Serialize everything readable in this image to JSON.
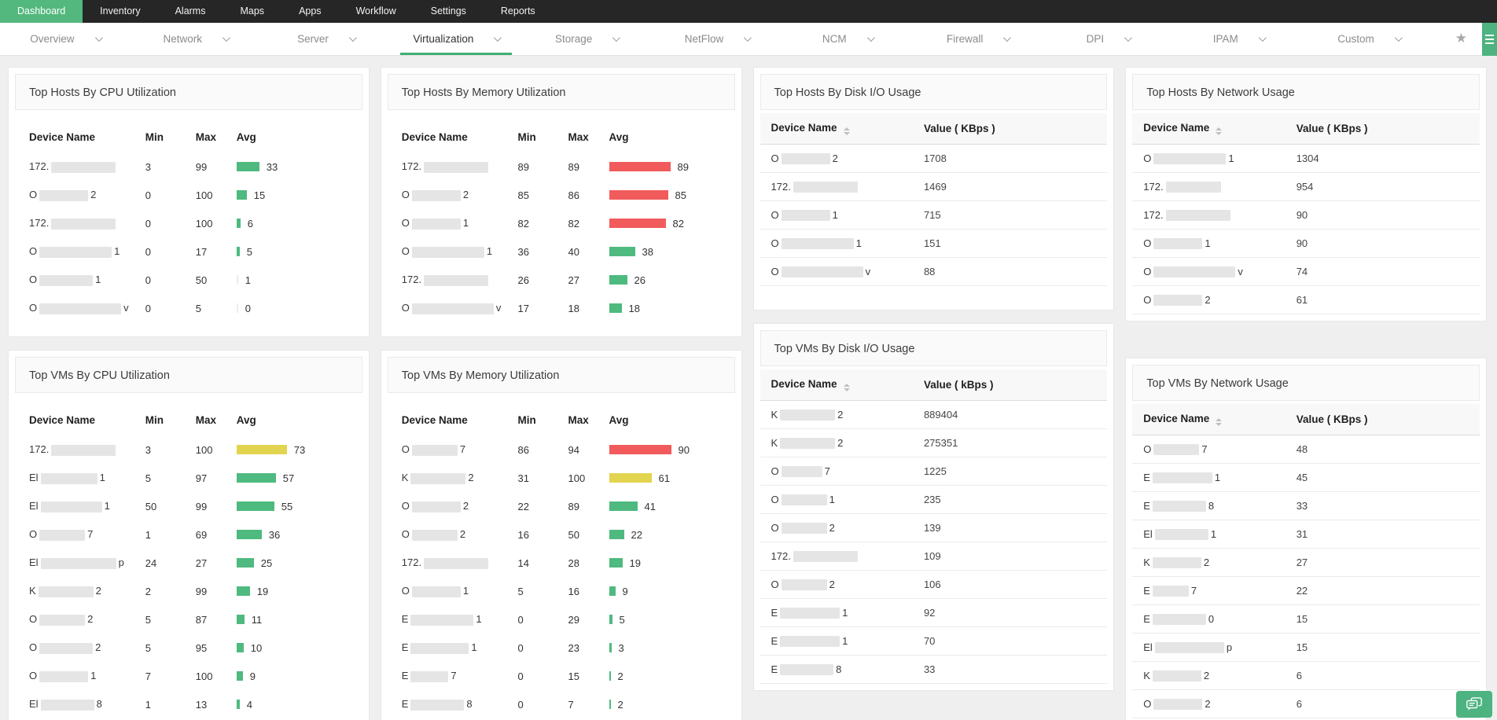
{
  "topnav": {
    "items": [
      {
        "label": "Dashboard",
        "active": true
      },
      {
        "label": "Inventory",
        "active": false
      },
      {
        "label": "Alarms",
        "active": false
      },
      {
        "label": "Maps",
        "active": false
      },
      {
        "label": "Apps",
        "active": false
      },
      {
        "label": "Workflow",
        "active": false
      },
      {
        "label": "Settings",
        "active": false
      },
      {
        "label": "Reports",
        "active": false
      }
    ]
  },
  "tabbar": {
    "tabs": [
      {
        "label": "Overview",
        "active": false
      },
      {
        "label": "Network",
        "active": false
      },
      {
        "label": "Server",
        "active": false
      },
      {
        "label": "Virtualization",
        "active": true
      },
      {
        "label": "Storage",
        "active": false
      },
      {
        "label": "NetFlow",
        "active": false
      },
      {
        "label": "NCM",
        "active": false
      },
      {
        "label": "Firewall",
        "active": false
      },
      {
        "label": "DPI",
        "active": false
      },
      {
        "label": "IPAM",
        "active": false
      },
      {
        "label": "Custom",
        "active": false
      }
    ],
    "star_icon": "favorite-star",
    "widget_list_icon": "widget-list"
  },
  "colors": {
    "nav_bg": "#262626",
    "accent_green": "#53b87e",
    "tab_underline_green": "#3fae73",
    "bar_green": "#4eba7f",
    "bar_red": "#f15b5b",
    "bar_yellow": "#e2d44f",
    "chat_button_green": "#4db380"
  },
  "widgets": [
    {
      "id": "top-hosts-by-cpu-utilization",
      "title": "Top Hosts By CPU Utilization",
      "type": "minmax",
      "columns": [
        "Device Name",
        "Min",
        "Max",
        "Avg"
      ],
      "rows": [
        {
          "device_prefix": "172.",
          "device_suffix": "",
          "redact_w": 82,
          "min": "3",
          "max": "99",
          "avg": 33,
          "bar": "green"
        },
        {
          "device_prefix": "O",
          "device_suffix": "2",
          "redact_w": 62,
          "min": "0",
          "max": "100",
          "avg": 15,
          "bar": "green"
        },
        {
          "device_prefix": "172.",
          "device_suffix": "",
          "redact_w": 82,
          "min": "0",
          "max": "100",
          "avg": 6,
          "bar": "green"
        },
        {
          "device_prefix": "O",
          "device_suffix": "1",
          "redact_w": 92,
          "min": "0",
          "max": "17",
          "avg": 5,
          "bar": "green"
        },
        {
          "device_prefix": "O",
          "device_suffix": "1",
          "redact_w": 68,
          "min": "0",
          "max": "50",
          "avg": 1,
          "bar": "faint"
        },
        {
          "device_prefix": "O",
          "device_suffix": "v",
          "redact_w": 104,
          "min": "0",
          "max": "5",
          "avg": 0,
          "bar": "faint"
        }
      ]
    },
    {
      "id": "top-hosts-by-memory-utilization",
      "title": "Top Hosts By Memory Utilization",
      "type": "minmax",
      "columns": [
        "Device Name",
        "Min",
        "Max",
        "Avg"
      ],
      "rows": [
        {
          "device_prefix": "172.",
          "device_suffix": "",
          "redact_w": 82,
          "min": "89",
          "max": "89",
          "avg": 89,
          "bar": "red"
        },
        {
          "device_prefix": "O",
          "device_suffix": "2",
          "redact_w": 62,
          "min": "85",
          "max": "86",
          "avg": 85,
          "bar": "red"
        },
        {
          "device_prefix": "O",
          "device_suffix": "1",
          "redact_w": 62,
          "min": "82",
          "max": "82",
          "avg": 82,
          "bar": "red"
        },
        {
          "device_prefix": "O",
          "device_suffix": "1",
          "redact_w": 92,
          "min": "36",
          "max": "40",
          "avg": 38,
          "bar": "green"
        },
        {
          "device_prefix": "172.",
          "device_suffix": "",
          "redact_w": 82,
          "min": "26",
          "max": "27",
          "avg": 26,
          "bar": "green"
        },
        {
          "device_prefix": "O",
          "device_suffix": "v",
          "redact_w": 104,
          "min": "17",
          "max": "18",
          "avg": 18,
          "bar": "green"
        }
      ]
    },
    {
      "id": "top-hosts-by-disk-io-usage",
      "title": "Top Hosts By Disk I/O Usage",
      "type": "table",
      "columns": [
        "Device Name",
        "Value ( KBps )"
      ],
      "rows": [
        {
          "device_prefix": "O",
          "device_suffix": "2",
          "redact_w": 62,
          "value": "1708"
        },
        {
          "device_prefix": "172.",
          "device_suffix": "",
          "redact_w": 82,
          "value": "1469"
        },
        {
          "device_prefix": "O",
          "device_suffix": "1",
          "redact_w": 62,
          "value": "715"
        },
        {
          "device_prefix": "O",
          "device_suffix": "1",
          "redact_w": 92,
          "value": "151"
        },
        {
          "device_prefix": "O",
          "device_suffix": "v",
          "redact_w": 104,
          "value": "88"
        }
      ]
    },
    {
      "id": "top-hosts-by-network-usage",
      "title": "Top Hosts By Network Usage",
      "type": "table",
      "columns": [
        "Device Name",
        "Value ( KBps )"
      ],
      "rows": [
        {
          "device_prefix": "O",
          "device_suffix": "1",
          "redact_w": 92,
          "value": "1304"
        },
        {
          "device_prefix": "172.",
          "device_suffix": "",
          "redact_w": 70,
          "value": "954"
        },
        {
          "device_prefix": "172.",
          "device_suffix": "",
          "redact_w": 82,
          "value": "90"
        },
        {
          "device_prefix": "O",
          "device_suffix": "1",
          "redact_w": 62,
          "value": "90"
        },
        {
          "device_prefix": "O",
          "device_suffix": "v",
          "redact_w": 104,
          "value": "74"
        },
        {
          "device_prefix": "O",
          "device_suffix": "2",
          "redact_w": 62,
          "value": "61"
        }
      ]
    },
    {
      "id": "top-vms-by-cpu-utilization",
      "title": "Top VMs By CPU Utilization",
      "type": "minmax",
      "columns": [
        "Device Name",
        "Min",
        "Max",
        "Avg"
      ],
      "rows": [
        {
          "device_prefix": "172.",
          "device_suffix": "",
          "redact_w": 82,
          "min": "3",
          "max": "100",
          "avg": 73,
          "bar": "yellow"
        },
        {
          "device_prefix": "El",
          "device_suffix": "1",
          "redact_w": 72,
          "min": "5",
          "max": "97",
          "avg": 57,
          "bar": "green"
        },
        {
          "device_prefix": "El",
          "device_suffix": "1",
          "redact_w": 78,
          "min": "50",
          "max": "99",
          "avg": 55,
          "bar": "green"
        },
        {
          "device_prefix": "O",
          "device_suffix": "7",
          "redact_w": 58,
          "min": "1",
          "max": "69",
          "avg": 36,
          "bar": "green"
        },
        {
          "device_prefix": "El",
          "device_suffix": "p",
          "redact_w": 96,
          "min": "24",
          "max": "27",
          "avg": 25,
          "bar": "green"
        },
        {
          "device_prefix": "K",
          "device_suffix": "2",
          "redact_w": 70,
          "min": "2",
          "max": "99",
          "avg": 19,
          "bar": "green"
        },
        {
          "device_prefix": "O",
          "device_suffix": "2",
          "redact_w": 58,
          "min": "5",
          "max": "87",
          "avg": 11,
          "bar": "green"
        },
        {
          "device_prefix": "O",
          "device_suffix": "2",
          "redact_w": 68,
          "min": "5",
          "max": "95",
          "avg": 10,
          "bar": "green"
        },
        {
          "device_prefix": "O",
          "device_suffix": "1",
          "redact_w": 62,
          "min": "7",
          "max": "100",
          "avg": 9,
          "bar": "green"
        },
        {
          "device_prefix": "El",
          "device_suffix": "8",
          "redact_w": 68,
          "min": "1",
          "max": "13",
          "avg": 4,
          "bar": "green"
        }
      ]
    },
    {
      "id": "top-vms-by-memory-utilization",
      "title": "Top VMs By Memory Utilization",
      "type": "minmax",
      "columns": [
        "Device Name",
        "Min",
        "Max",
        "Avg"
      ],
      "rows": [
        {
          "device_prefix": "O",
          "device_suffix": "7",
          "redact_w": 58,
          "min": "86",
          "max": "94",
          "avg": 90,
          "bar": "red"
        },
        {
          "device_prefix": "K",
          "device_suffix": "2",
          "redact_w": 70,
          "min": "31",
          "max": "100",
          "avg": 61,
          "bar": "yellow"
        },
        {
          "device_prefix": "O",
          "device_suffix": "2",
          "redact_w": 62,
          "min": "22",
          "max": "89",
          "avg": 41,
          "bar": "green"
        },
        {
          "device_prefix": "O",
          "device_suffix": "2",
          "redact_w": 58,
          "min": "16",
          "max": "50",
          "avg": 22,
          "bar": "green"
        },
        {
          "device_prefix": "172.",
          "device_suffix": "",
          "redact_w": 82,
          "min": "14",
          "max": "28",
          "avg": 19,
          "bar": "green"
        },
        {
          "device_prefix": "O",
          "device_suffix": "1",
          "redact_w": 62,
          "min": "5",
          "max": "16",
          "avg": 9,
          "bar": "green"
        },
        {
          "device_prefix": "E",
          "device_suffix": "1",
          "redact_w": 80,
          "min": "0",
          "max": "29",
          "avg": 5,
          "bar": "green"
        },
        {
          "device_prefix": "E",
          "device_suffix": "1",
          "redact_w": 74,
          "min": "0",
          "max": "23",
          "avg": 3,
          "bar": "green"
        },
        {
          "device_prefix": "E",
          "device_suffix": "7",
          "redact_w": 48,
          "min": "0",
          "max": "15",
          "avg": 2,
          "bar": "green"
        },
        {
          "device_prefix": "E",
          "device_suffix": "8",
          "redact_w": 68,
          "min": "0",
          "max": "7",
          "avg": 2,
          "bar": "green"
        }
      ]
    },
    {
      "id": "top-vms-by-disk-io-usage",
      "title": "Top VMs By Disk I/O Usage",
      "type": "table",
      "columns": [
        "Device Name",
        "Value ( kBps )"
      ],
      "rows": [
        {
          "device_prefix": "K",
          "device_suffix": "2",
          "redact_w": 70,
          "value": "889404"
        },
        {
          "device_prefix": "K",
          "device_suffix": "2",
          "redact_w": 70,
          "value": "275351"
        },
        {
          "device_prefix": "O",
          "device_suffix": "7",
          "redact_w": 52,
          "value": "1225"
        },
        {
          "device_prefix": "O",
          "device_suffix": "1",
          "redact_w": 58,
          "value": "235"
        },
        {
          "device_prefix": "O",
          "device_suffix": "2",
          "redact_w": 58,
          "value": "139"
        },
        {
          "device_prefix": "172.",
          "device_suffix": "",
          "redact_w": 82,
          "value": "109"
        },
        {
          "device_prefix": "O",
          "device_suffix": "2",
          "redact_w": 58,
          "value": "106"
        },
        {
          "device_prefix": "E",
          "device_suffix": "1",
          "redact_w": 76,
          "value": "92"
        },
        {
          "device_prefix": "E",
          "device_suffix": "1",
          "redact_w": 76,
          "value": "70"
        },
        {
          "device_prefix": "E",
          "device_suffix": "8",
          "redact_w": 68,
          "value": "33"
        }
      ]
    },
    {
      "id": "top-vms-by-network-usage",
      "title": "Top VMs By Network Usage",
      "type": "table",
      "columns": [
        "Device Name",
        "Value ( KBps )"
      ],
      "rows": [
        {
          "device_prefix": "O",
          "device_suffix": "7",
          "redact_w": 58,
          "value": "48"
        },
        {
          "device_prefix": "E",
          "device_suffix": "1",
          "redact_w": 76,
          "value": "45"
        },
        {
          "device_prefix": "E",
          "device_suffix": "8",
          "redact_w": 68,
          "value": "33"
        },
        {
          "device_prefix": "El",
          "device_suffix": "1",
          "redact_w": 68,
          "value": "31"
        },
        {
          "device_prefix": "K",
          "device_suffix": "2",
          "redact_w": 62,
          "value": "27"
        },
        {
          "device_prefix": "E",
          "device_suffix": "7",
          "redact_w": 46,
          "value": "22"
        },
        {
          "device_prefix": "E",
          "device_suffix": "0",
          "redact_w": 68,
          "value": "15"
        },
        {
          "device_prefix": "El",
          "device_suffix": "p",
          "redact_w": 88,
          "value": "15"
        },
        {
          "device_prefix": "K",
          "device_suffix": "2",
          "redact_w": 62,
          "value": "6"
        },
        {
          "device_prefix": "O",
          "device_suffix": "2",
          "redact_w": 62,
          "value": "6"
        }
      ]
    }
  ]
}
